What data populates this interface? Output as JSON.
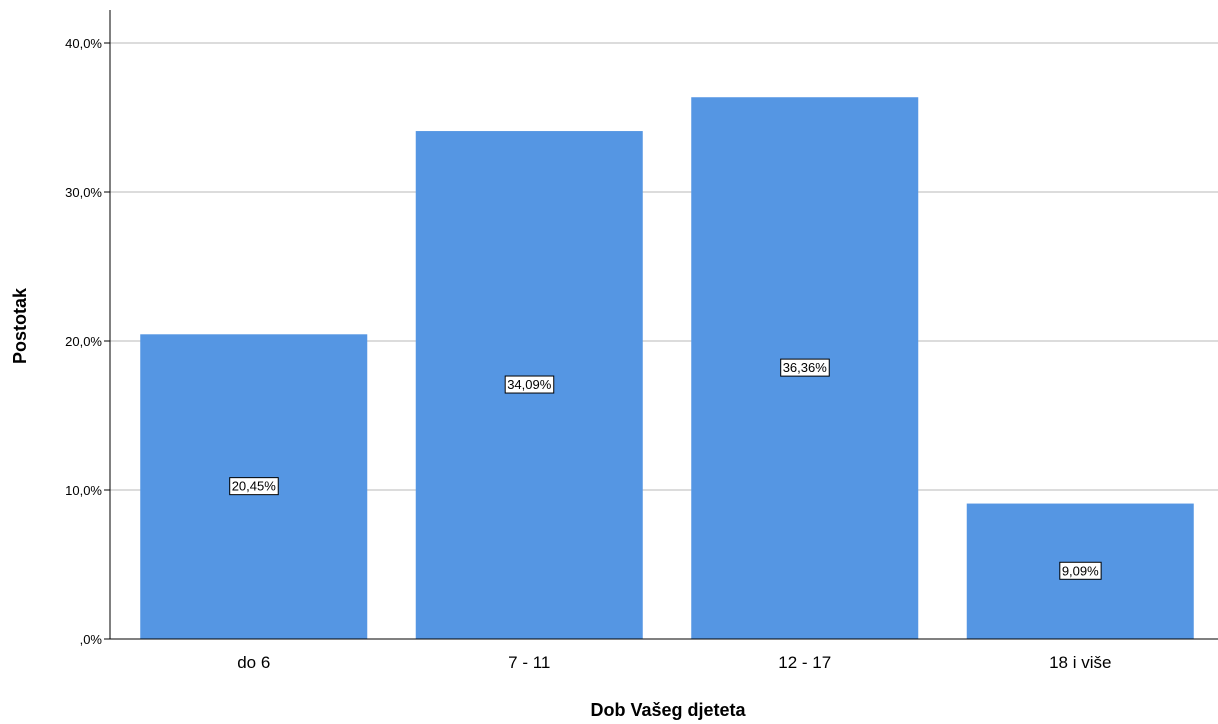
{
  "chart_data": {
    "type": "bar",
    "categories": [
      "do 6",
      "7 - 11",
      "12 - 17",
      "18 i više"
    ],
    "values": [
      20.45,
      34.09,
      36.36,
      9.09
    ],
    "data_labels": [
      "20,45%",
      "34,09%",
      "36,36%",
      "9,09%"
    ],
    "xlabel": "Dob Vašeg djeteta",
    "ylabel": "Postotak",
    "ylim": [
      0,
      40
    ],
    "yticks": [
      0,
      10,
      20,
      30,
      40
    ],
    "ytick_labels": [
      ",0%",
      "10,0%",
      "20,0%",
      "30,0%",
      "40,0%"
    ],
    "grid": true,
    "bar_color": "#5596e3",
    "grid_color": "#c8c8c8"
  }
}
